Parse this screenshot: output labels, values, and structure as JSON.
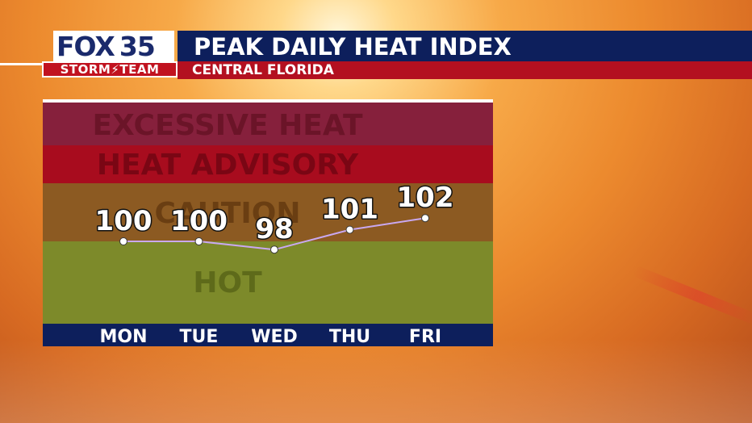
{
  "header": {
    "logo_fox": "FOX",
    "logo_number": "35",
    "logo_team": "STORM⚡TEAM",
    "title": "PEAK DAILY HEAT INDEX",
    "subtitle": "CENTRAL FLORIDA"
  },
  "colors": {
    "excessive_heat": "#86203c",
    "heat_advisory": "#a80c1e",
    "caution": "#8c5a22",
    "hot": "#7d8a2a",
    "day_bar": "#0d1f5c",
    "line": "#c9a8f0"
  },
  "chart_data": {
    "type": "line",
    "title": "PEAK DAILY HEAT INDEX",
    "subtitle": "CENTRAL FLORIDA",
    "categories": [
      "MON",
      "TUE",
      "WED",
      "THU",
      "FRI"
    ],
    "series": [
      {
        "values": [
          100,
          100,
          98,
          101,
          102
        ]
      }
    ],
    "data_labels": [
      "100",
      "100",
      "98",
      "101",
      "102"
    ],
    "bands": [
      {
        "label": "EXCESSIVE HEAT",
        "from": 113,
        "to": 125
      },
      {
        "label": "HEAT ADVISORY",
        "from": 105,
        "to": 113
      },
      {
        "label": "CAUTION",
        "from": 100,
        "to": 105
      },
      {
        "label": "HOT",
        "from": 80,
        "to": 100
      }
    ],
    "ylim": [
      80,
      125
    ],
    "grid": false,
    "legend": "none"
  }
}
